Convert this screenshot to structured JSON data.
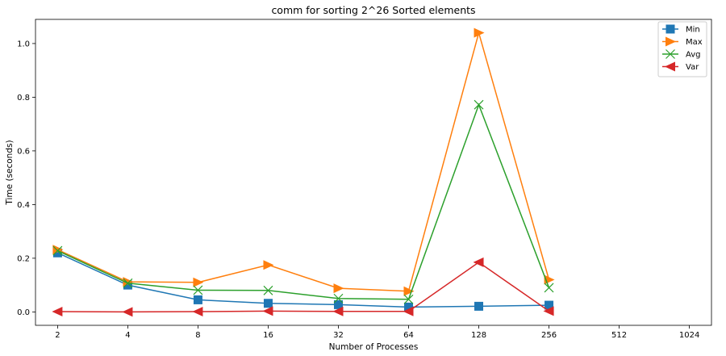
{
  "chart_data": {
    "type": "line",
    "title": "comm for sorting 2^26 Sorted elements",
    "xlabel": "Number of Processes",
    "ylabel": "Time (seconds)",
    "x": [
      2,
      4,
      8,
      16,
      32,
      64,
      128,
      256
    ],
    "x_ticks": [
      "2",
      "4",
      "8",
      "16",
      "32",
      "64",
      "128",
      "256",
      "512",
      "1024"
    ],
    "y_ticks": [
      "0.0",
      "0.2",
      "0.4",
      "0.6",
      "0.8",
      "1.0"
    ],
    "x_scale": "log2",
    "xlim": [
      2,
      1024
    ],
    "ylim": [
      -0.05,
      1.09
    ],
    "grid": false,
    "legend_position": "top-right",
    "series": [
      {
        "name": "Min",
        "color": "#1f77b4",
        "marker": "square",
        "values": [
          0.22,
          0.1,
          0.045,
          0.032,
          0.027,
          0.018,
          0.021,
          0.025
        ]
      },
      {
        "name": "Max",
        "color": "#ff7f0e",
        "marker": "triangle-right",
        "values": [
          0.232,
          0.112,
          0.11,
          0.175,
          0.088,
          0.077,
          1.04,
          0.12
        ]
      },
      {
        "name": "Avg",
        "color": "#2ca02c",
        "marker": "x",
        "values": [
          0.228,
          0.107,
          0.081,
          0.08,
          0.05,
          0.047,
          0.772,
          0.09
        ]
      },
      {
        "name": "Var",
        "color": "#d62728",
        "marker": "triangle-left",
        "values": [
          0.001,
          0.0,
          0.001,
          0.003,
          0.002,
          0.002,
          0.185,
          0.003
        ]
      }
    ]
  }
}
